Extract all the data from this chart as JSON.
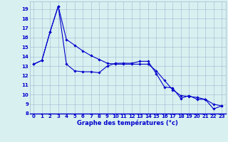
{
  "line1_x": [
    0,
    1,
    2,
    3,
    4,
    5,
    6,
    7,
    8,
    9,
    10,
    11,
    12,
    13,
    14,
    15,
    16,
    17,
    18,
    19,
    20,
    21,
    22,
    23
  ],
  "line1_y": [
    13.2,
    13.6,
    16.6,
    19.3,
    13.2,
    12.5,
    12.4,
    12.4,
    12.3,
    13.0,
    13.3,
    13.3,
    13.3,
    13.5,
    13.5,
    12.2,
    10.8,
    10.7,
    9.6,
    9.9,
    9.5,
    9.5,
    8.5,
    8.8
  ],
  "line2_x": [
    0,
    1,
    2,
    3,
    4,
    5,
    6,
    7,
    8,
    9,
    10,
    11,
    12,
    13,
    14,
    15,
    16,
    17,
    18,
    19,
    20,
    21,
    22,
    23
  ],
  "line2_y": [
    13.2,
    13.6,
    16.6,
    19.3,
    15.8,
    15.2,
    14.6,
    14.1,
    13.7,
    13.3,
    13.2,
    13.2,
    13.2,
    13.2,
    13.2,
    12.5,
    11.5,
    10.5,
    9.9,
    9.8,
    9.7,
    9.5,
    9.0,
    8.8
  ],
  "xlabel": "Graphe des températures (°c)",
  "xticks": [
    0,
    1,
    2,
    3,
    4,
    5,
    6,
    7,
    8,
    9,
    10,
    11,
    12,
    13,
    14,
    15,
    16,
    17,
    18,
    19,
    20,
    21,
    22,
    23
  ],
  "yticks": [
    8,
    9,
    10,
    11,
    12,
    13,
    14,
    15,
    16,
    17,
    18,
    19
  ],
  "xlim": [
    -0.5,
    23.5
  ],
  "ylim": [
    8,
    19.8
  ],
  "line_color": "#0000cc",
  "bg_color": "#d8f0f0",
  "grid_color": "#a0b8d0",
  "marker": "D",
  "markersize": 1.8,
  "linewidth": 0.8,
  "tick_fontsize": 5.0,
  "xlabel_fontsize": 6.0
}
